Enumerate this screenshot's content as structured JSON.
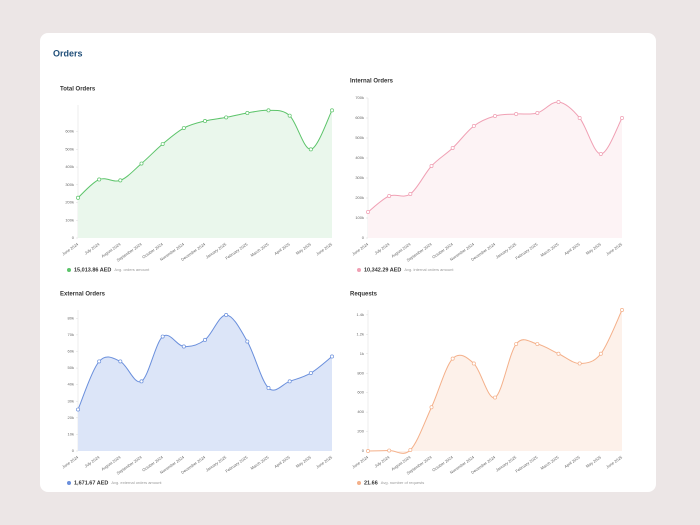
{
  "header": {
    "title": "Orders"
  },
  "chart_data": [
    {
      "type": "line",
      "title": "Total Orders",
      "categories": [
        "June 2024",
        "July 2024",
        "August 2024",
        "September 2024",
        "October 2024",
        "November 2024",
        "December 2024",
        "January 2025",
        "February 2025",
        "March 2025",
        "April 2025",
        "May 2025",
        "June 2025"
      ],
      "series": [
        {
          "name": "Total Orders",
          "color": "#5cc46a",
          "values": [
            227000,
            330000,
            325000,
            420000,
            530000,
            620000,
            660000,
            680000,
            705000,
            720000,
            690000,
            500000,
            720000
          ]
        }
      ],
      "fill": "#eaf7ec",
      "ylim": [
        0,
        750000
      ],
      "yticks": [
        0,
        {
          "value": 100000,
          "label": "100k"
        },
        {
          "value": 200000,
          "label": "200k"
        },
        {
          "value": 300000,
          "label": "300k"
        },
        {
          "value": 400000,
          "label": "400k"
        },
        {
          "value": 500000,
          "label": "500k"
        },
        {
          "value": 600000,
          "label": "600k"
        }
      ],
      "summary": {
        "value": "15,013.86 AED",
        "label": "Avg. orders amount"
      }
    },
    {
      "type": "line",
      "title": "Internal Orders",
      "categories": [
        "June 2024",
        "July 2024",
        "August 2024",
        "September 2024",
        "October 2024",
        "November 2024",
        "December 2024",
        "January 2025",
        "February 2025",
        "March 2025",
        "April 2025",
        "May 2025",
        "June 2025"
      ],
      "series": [
        {
          "name": "Internal Orders",
          "color": "#f0a0b4",
          "values": [
            130000,
            210000,
            220000,
            360000,
            450000,
            560000,
            610000,
            620000,
            625000,
            680000,
            600000,
            420000,
            600000
          ]
        }
      ],
      "fill": "#fdf3f5",
      "ylim": [
        0,
        700000
      ],
      "yticks": [
        0,
        {
          "value": 100000,
          "label": "100k"
        },
        {
          "value": 200000,
          "label": "200k"
        },
        {
          "value": 300000,
          "label": "300k"
        },
        {
          "value": 400000,
          "label": "400k"
        },
        {
          "value": 500000,
          "label": "500k"
        },
        {
          "value": 600000,
          "label": "600k"
        },
        {
          "value": 700000,
          "label": "700k"
        }
      ],
      "summary": {
        "value": "10,342.29 AED",
        "label": "Avg. internal orders amount"
      }
    },
    {
      "type": "line",
      "title": "External Orders",
      "categories": [
        "June 2024",
        "July 2024",
        "August 2024",
        "September 2024",
        "October 2024",
        "November 2024",
        "December 2024",
        "January 2025",
        "February 2025",
        "March 2025",
        "April 2025",
        "May 2025",
        "June 2025"
      ],
      "series": [
        {
          "name": "External Orders",
          "color": "#6a8fdc",
          "values": [
            25000,
            54000,
            54000,
            42000,
            69000,
            63000,
            67000,
            82000,
            66000,
            38000,
            42000,
            47000,
            57000
          ]
        }
      ],
      "fill": "#dce5f8",
      "ylim": [
        0,
        85000
      ],
      "yticks": [
        0,
        {
          "value": 10000,
          "label": "10k"
        },
        {
          "value": 20000,
          "label": "20k"
        },
        {
          "value": 30000,
          "label": "30k"
        },
        {
          "value": 40000,
          "label": "40k"
        },
        {
          "value": 50000,
          "label": "50k"
        },
        {
          "value": 60000,
          "label": "60k"
        },
        {
          "value": 70000,
          "label": "70k"
        },
        {
          "value": 80000,
          "label": "80k"
        }
      ],
      "summary": {
        "value": "1,671.67 AED",
        "label": "Avg. external orders amount"
      }
    },
    {
      "type": "line",
      "title": "Requests",
      "categories": [
        "June 2024",
        "July 2024",
        "August 2024",
        "September 2024",
        "October 2024",
        "November 2024",
        "December 2024",
        "January 2025",
        "February 2025",
        "March 2025",
        "April 2025",
        "May 2025",
        "June 2025"
      ],
      "series": [
        {
          "name": "Requests",
          "color": "#f4b08a",
          "values": [
            0,
            5,
            10,
            450,
            950,
            900,
            550,
            1100,
            1100,
            1000,
            900,
            1000,
            1450
          ]
        }
      ],
      "fill": "#fdf1ea",
      "ylim": [
        0,
        1450
      ],
      "yticks": [
        0,
        200,
        400,
        600,
        800,
        {
          "value": 1000,
          "label": "1k"
        },
        {
          "value": 1200,
          "label": "1.2k"
        },
        {
          "value": 1400,
          "label": "1.4k"
        }
      ],
      "summary": {
        "value": "21.66",
        "label": "Avg. number of requests"
      }
    }
  ]
}
